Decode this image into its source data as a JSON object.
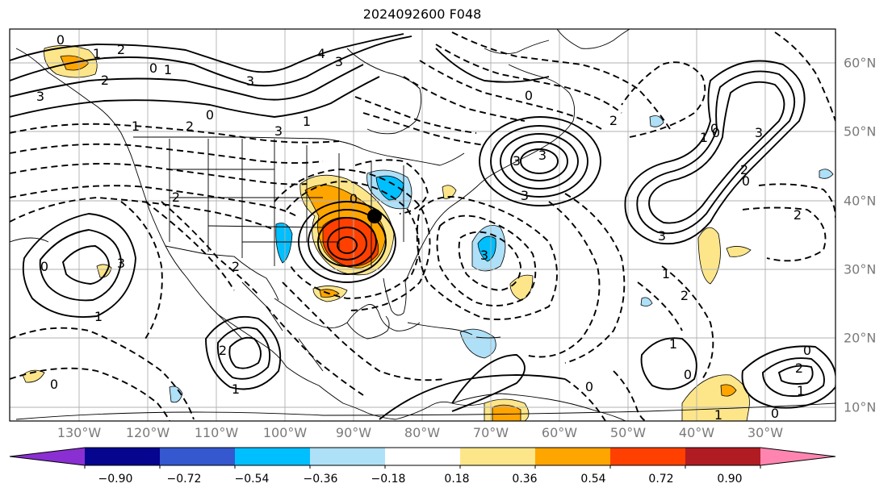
{
  "title": "2024092600 F048",
  "lon_labels": [
    "130°W",
    "120°W",
    "110°W",
    "100°W",
    "90°W",
    "80°W",
    "70°W",
    "60°W",
    "50°W",
    "40°W",
    "30°W"
  ],
  "lat_labels": [
    "60°N",
    "50°N",
    "40°N",
    "30°N",
    "20°N",
    "10°N"
  ],
  "colorbar": {
    "ticks": [
      "−0.90",
      "−0.72",
      "−0.54",
      "−0.36",
      "−0.18",
      "0.18",
      "0.36",
      "0.54",
      "0.72",
      "0.90"
    ],
    "colors": [
      "#8a2fd2",
      "#050590",
      "#3557cf",
      "#00bfff",
      "#aee0f8",
      "#ffffff",
      "#fde68a",
      "#ffa500",
      "#ff4000",
      "#b01c22",
      "#ff85b0"
    ]
  },
  "contour_labels": [
    "0",
    "2",
    "1",
    "3",
    "4",
    "0",
    "1",
    "2",
    "3",
    "3",
    "0",
    "1",
    "2",
    "3",
    "0",
    "1",
    "3",
    "3",
    "3",
    "2",
    "1",
    "0",
    "2",
    "3",
    "0",
    "3",
    "2",
    "0",
    "1",
    "2",
    "2",
    "3",
    "3",
    "0",
    "0",
    "1",
    "2",
    "1",
    "0",
    "2",
    "1",
    "0",
    "2",
    "0",
    "1",
    "0",
    "0",
    "1"
  ],
  "marker": "storm-center"
}
